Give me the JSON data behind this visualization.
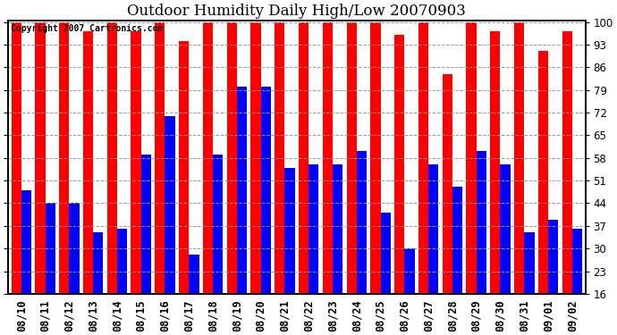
{
  "title": "Outdoor Humidity Daily High/Low 20070903",
  "copyright": "Copyright 2007 Cartronics.com",
  "dates": [
    "08/10",
    "08/11",
    "08/12",
    "08/13",
    "08/14",
    "08/15",
    "08/16",
    "08/17",
    "08/18",
    "08/19",
    "08/20",
    "08/21",
    "08/22",
    "08/23",
    "08/24",
    "08/25",
    "08/26",
    "08/27",
    "08/28",
    "08/29",
    "08/30",
    "08/31",
    "09/01",
    "09/02"
  ],
  "highs": [
    100,
    100,
    100,
    97,
    100,
    97,
    100,
    94,
    100,
    100,
    100,
    100,
    100,
    100,
    100,
    100,
    96,
    100,
    84,
    100,
    97,
    100,
    91,
    97
  ],
  "lows": [
    48,
    44,
    44,
    35,
    36,
    59,
    71,
    28,
    59,
    80,
    80,
    55,
    56,
    56,
    60,
    41,
    30,
    56,
    49,
    60,
    56,
    35,
    39,
    36
  ],
  "high_color": "#ff0000",
  "low_color": "#0000ff",
  "bg_color": "#ffffff",
  "yticks": [
    16,
    23,
    30,
    37,
    44,
    51,
    58,
    65,
    72,
    79,
    86,
    93,
    100
  ],
  "ymin": 16,
  "ymax": 100,
  "grid_color": "#999999",
  "title_fontsize": 12,
  "copyright_fontsize": 7,
  "tick_fontsize": 8.5
}
